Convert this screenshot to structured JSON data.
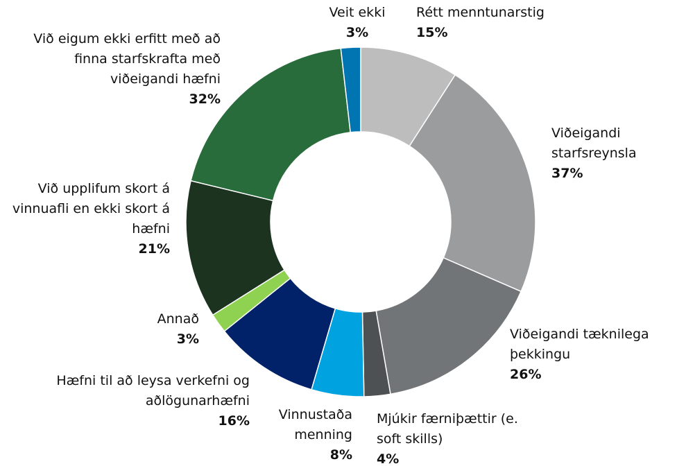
{
  "chart_data": {
    "type": "donut",
    "categories": [
      "Rétt menntunarstig",
      "Viðeigandi starfsreynsla",
      "Viðeigandi tæknilega þekkingu",
      "Mjúkir færniþættir (e. soft skills)",
      "Vinnustaða menning",
      "Hæfni til að leysa verkefni og aðlögunarhæfni",
      "Annað",
      "Við upplifum skort á vinnuafli en ekki skort á hæfni",
      "Við eigum ekki erfitt með að finna starfskrafta með viðeigandi hæfni",
      "Veit ekki"
    ],
    "values": [
      15,
      37,
      26,
      4,
      8,
      16,
      3,
      21,
      32,
      3
    ],
    "value_labels": [
      "15%",
      "37%",
      "26%",
      "4%",
      "8%",
      "16%",
      "3%",
      "21%",
      "32%",
      "3%"
    ],
    "colors": [
      "#bcbdbc",
      "#9b9c9d",
      "#727577",
      "#4e5154",
      "#00a3e0",
      "#012169",
      "#8fd150",
      "#1c3320",
      "#286c3b",
      "#0075b1"
    ]
  }
}
